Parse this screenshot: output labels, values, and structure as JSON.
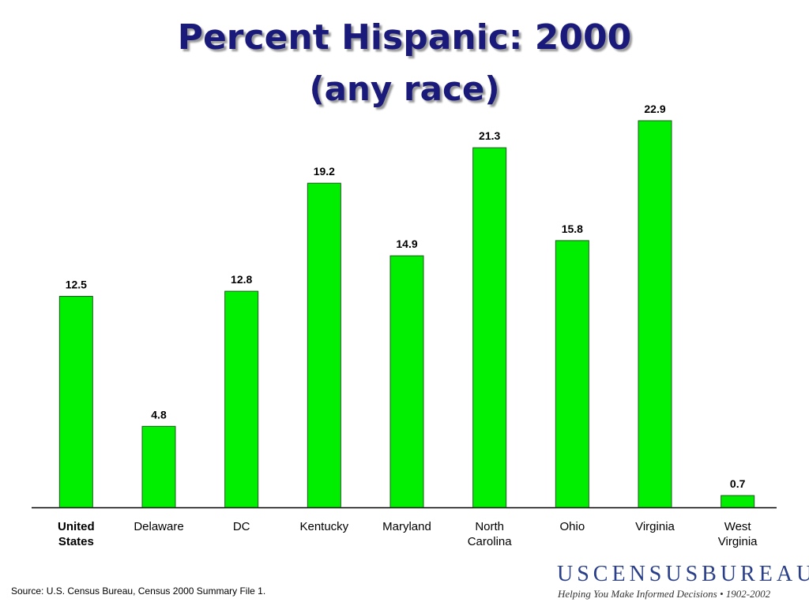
{
  "chart_data": {
    "type": "bar",
    "title": "Percent Hispanic: 2000",
    "subtitle": "(any race)",
    "categories": [
      "United States",
      "Delaware",
      "DC",
      "Kentucky",
      "Maryland",
      "North Carolina",
      "Ohio",
      "Virginia",
      "West Virginia"
    ],
    "values": [
      12.5,
      4.8,
      12.8,
      19.2,
      14.9,
      21.3,
      15.8,
      22.9,
      0.7
    ],
    "color": "#00ee00"
  },
  "source": "Source:  U.S. Census Bureau, Census 2000 Summary File 1.",
  "logo": {
    "name": "USCENSUSBUREAU",
    "tagline": "Helping You Make Informed Decisions • 1902-2002"
  }
}
